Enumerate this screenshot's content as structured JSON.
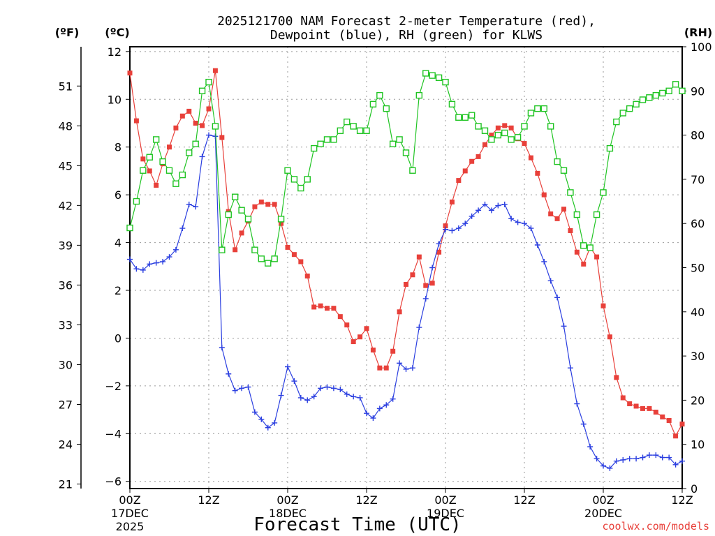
{
  "chart_data": {
    "type": "line",
    "title_line1": "2025121700 NAM Forecast 2-meter Temperature (red),",
    "title_line2": "Dewpoint (blue), RH (green) for KLWS",
    "xlabel": "Forecast Time (UTC)",
    "watermark": "coolwx.com/models",
    "unit_f": "(ºF)",
    "unit_c": "(ºC)",
    "unit_rh": "(RH)",
    "x_range_hours": [
      0,
      84
    ],
    "ylim_c": [
      -6.3,
      12.2
    ],
    "ylim_rh": [
      0,
      100
    ],
    "yticks_c": [
      "12",
      "10",
      "8",
      "6",
      "4",
      "2",
      "0",
      "−2",
      "−4",
      "−6"
    ],
    "yticks_c_values": [
      12,
      10,
      8,
      6,
      4,
      2,
      0,
      -2,
      -4,
      -6
    ],
    "yticks_f": [
      "51",
      "48",
      "45",
      "42",
      "39",
      "36",
      "33",
      "30",
      "27",
      "24",
      "21"
    ],
    "yticks_f_values": [
      51,
      48,
      45,
      42,
      39,
      36,
      33,
      30,
      27,
      24,
      21
    ],
    "yticks_rh": [
      "100",
      "90",
      "80",
      "70",
      "60",
      "50",
      "40",
      "30",
      "20",
      "10",
      "0"
    ],
    "yticks_rh_values": [
      100,
      90,
      80,
      70,
      60,
      50,
      40,
      30,
      20,
      10,
      0
    ],
    "x_ticks": [
      {
        "hour": 0,
        "labels": [
          "00Z",
          "17DEC",
          "2025"
        ]
      },
      {
        "hour": 12,
        "labels": [
          "12Z"
        ]
      },
      {
        "hour": 24,
        "labels": [
          "00Z",
          "18DEC"
        ]
      },
      {
        "hour": 36,
        "labels": [
          "12Z"
        ]
      },
      {
        "hour": 48,
        "labels": [
          "00Z",
          "19DEC"
        ]
      },
      {
        "hour": 60,
        "labels": [
          "12Z"
        ]
      },
      {
        "hour": 72,
        "labels": [
          "00Z",
          "20DEC"
        ]
      },
      {
        "hour": 84,
        "labels": [
          "12Z"
        ]
      }
    ],
    "grid": true,
    "series": [
      {
        "id": "temperature",
        "color": "#e8403a",
        "marker": "filled-square",
        "axis": "c",
        "x": [
          0,
          1,
          2,
          3,
          4,
          5,
          6,
          7,
          8,
          9,
          10,
          11,
          12,
          13,
          14,
          15,
          16,
          17,
          18,
          19,
          20,
          21,
          22,
          23,
          24,
          25,
          26,
          27,
          28,
          29,
          30,
          31,
          32,
          33,
          34,
          35,
          36,
          37,
          38,
          39,
          40,
          41,
          42,
          43,
          44,
          45,
          46,
          47,
          48,
          49,
          50,
          51,
          52,
          53,
          54,
          55,
          56,
          57,
          58,
          59,
          60,
          61,
          62,
          63,
          64,
          65,
          66,
          67,
          68,
          69,
          70,
          71,
          72,
          73,
          74,
          75,
          76,
          77,
          78,
          79,
          80,
          81,
          82,
          83,
          84
        ],
        "values": [
          11.1,
          9.1,
          7.5,
          7.0,
          6.4,
          7.3,
          8.0,
          8.8,
          9.3,
          9.5,
          9.0,
          8.9,
          9.6,
          11.2,
          8.4,
          5.3,
          3.7,
          4.4,
          4.9,
          5.5,
          5.7,
          5.6,
          5.6,
          4.8,
          3.8,
          3.5,
          3.2,
          2.6,
          1.3,
          1.35,
          1.25,
          1.25,
          0.9,
          0.55,
          -0.15,
          0.05,
          0.4,
          -0.5,
          -1.25,
          -1.25,
          -0.55,
          1.1,
          2.25,
          2.65,
          3.4,
          2.2,
          2.3,
          3.6,
          4.7,
          5.7,
          6.6,
          7.0,
          7.4,
          7.6,
          8.1,
          8.5,
          8.8,
          8.9,
          8.8,
          8.35,
          8.15,
          7.55,
          6.9,
          6.0,
          5.2,
          5.0,
          5.4,
          4.5,
          3.6,
          3.1,
          3.8,
          3.4,
          1.35,
          0.05,
          -1.65,
          -2.5,
          -2.75,
          -2.85,
          -2.95,
          -2.95,
          -3.1,
          -3.3,
          -3.45,
          -4.1,
          -3.6
        ]
      },
      {
        "id": "dewpoint",
        "color": "#2b3fe0",
        "marker": "plus",
        "axis": "c",
        "x": [
          0,
          1,
          2,
          3,
          4,
          5,
          6,
          7,
          8,
          9,
          10,
          11,
          12,
          13,
          14,
          15,
          16,
          17,
          18,
          19,
          20,
          21,
          22,
          23,
          24,
          25,
          26,
          27,
          28,
          29,
          30,
          31,
          32,
          33,
          34,
          35,
          36,
          37,
          38,
          39,
          40,
          41,
          42,
          43,
          44,
          45,
          46,
          47,
          48,
          49,
          50,
          51,
          52,
          53,
          54,
          55,
          56,
          57,
          58,
          59,
          60,
          61,
          62,
          63,
          64,
          65,
          66,
          67,
          68,
          69,
          70,
          71,
          72,
          73,
          74,
          75,
          76,
          77,
          78,
          79,
          80,
          81,
          82,
          83,
          84
        ],
        "values": [
          3.3,
          2.9,
          2.85,
          3.1,
          3.15,
          3.2,
          3.4,
          3.7,
          4.6,
          5.6,
          5.5,
          7.6,
          8.5,
          8.45,
          -0.4,
          -1.5,
          -2.2,
          -2.1,
          -2.05,
          -3.1,
          -3.4,
          -3.75,
          -3.55,
          -2.4,
          -1.2,
          -1.8,
          -2.5,
          -2.6,
          -2.45,
          -2.1,
          -2.05,
          -2.1,
          -2.15,
          -2.35,
          -2.45,
          -2.5,
          -3.15,
          -3.35,
          -2.95,
          -2.8,
          -2.55,
          -1.05,
          -1.3,
          -1.25,
          0.45,
          1.65,
          2.95,
          3.95,
          4.55,
          4.5,
          4.6,
          4.8,
          5.1,
          5.35,
          5.6,
          5.35,
          5.55,
          5.6,
          5.0,
          4.85,
          4.8,
          4.6,
          3.9,
          3.2,
          2.4,
          1.7,
          0.5,
          -1.25,
          -2.75,
          -3.6,
          -4.55,
          -5.05,
          -5.35,
          -5.45,
          -5.15,
          -5.1,
          -5.05,
          -5.05,
          -5.0,
          -4.9,
          -4.9,
          -5.0,
          -5.0,
          -5.3,
          -5.15
        ]
      },
      {
        "id": "rh",
        "color": "#20c423",
        "marker": "open-square",
        "axis": "rh",
        "x": [
          0,
          1,
          2,
          3,
          4,
          5,
          6,
          7,
          8,
          9,
          10,
          11,
          12,
          13,
          14,
          15,
          16,
          17,
          18,
          19,
          20,
          21,
          22,
          23,
          24,
          25,
          26,
          27,
          28,
          29,
          30,
          31,
          32,
          33,
          34,
          35,
          36,
          37,
          38,
          39,
          40,
          41,
          42,
          43,
          44,
          45,
          46,
          47,
          48,
          49,
          50,
          51,
          52,
          53,
          54,
          55,
          56,
          57,
          58,
          59,
          60,
          61,
          62,
          63,
          64,
          65,
          66,
          67,
          68,
          69,
          70,
          71,
          72,
          73,
          74,
          75,
          76,
          77,
          78,
          79,
          80,
          81,
          82,
          83,
          84
        ],
        "values": [
          59,
          65,
          72,
          75,
          79,
          74,
          72,
          69,
          71,
          76,
          78,
          90,
          92,
          82,
          54,
          62,
          66,
          63,
          61,
          54,
          52,
          51,
          52,
          61,
          72,
          70,
          68,
          70,
          77,
          78,
          79,
          79,
          81,
          83,
          82,
          81,
          81,
          87,
          89,
          86,
          78,
          79,
          76,
          72,
          89,
          94,
          93.5,
          93,
          92,
          87,
          84,
          84,
          84.5,
          82,
          81,
          79,
          80,
          80.5,
          79,
          79.5,
          82,
          85,
          86,
          86,
          82,
          74,
          72,
          67,
          62,
          55,
          54.5,
          62,
          67,
          77,
          83,
          85,
          86,
          87,
          88,
          88.5,
          89,
          89.5,
          90,
          91.5,
          90
        ]
      }
    ]
  }
}
